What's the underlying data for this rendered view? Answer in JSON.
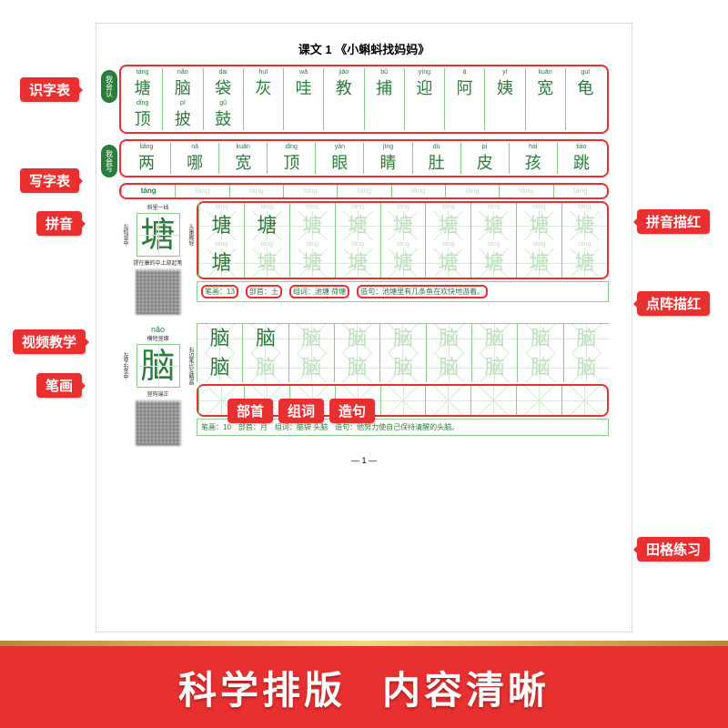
{
  "title": "课文 1 《小蝌蚪找妈妈》",
  "page_number": "— 1 —",
  "badges": {
    "recognize": "我会认",
    "write": "我会写"
  },
  "recognize": {
    "row1_pinyin": [
      "táng",
      "nǎo",
      "dài",
      "huī",
      "wā",
      "jiāo",
      "bǔ",
      "yíng",
      "ā",
      "yí",
      "kuān",
      "guī"
    ],
    "row1_chars": [
      "塘",
      "脑",
      "袋",
      "灰",
      "哇",
      "教",
      "捕",
      "迎",
      "阿",
      "姨",
      "宽",
      "龟"
    ],
    "row2_pinyin": [
      "dǐng",
      "pī",
      "gǔ",
      "",
      "",
      "",
      "",
      "",
      "",
      "",
      "",
      ""
    ],
    "row2_chars": [
      "顶",
      "披",
      "鼓",
      "",
      "",
      "",
      "",
      "",
      "",
      "",
      "",
      ""
    ]
  },
  "write": {
    "pinyin": [
      "liǎng",
      "nǎ",
      "kuān",
      "dǐng",
      "yǎn",
      "jīng",
      "dù",
      "pí",
      "hái",
      "tiào"
    ],
    "chars": [
      "两",
      "哪",
      "宽",
      "顶",
      "眼",
      "睛",
      "肚",
      "皮",
      "孩",
      "跳"
    ]
  },
  "pinyin_bar": {
    "main": "táng",
    "repeats": [
      "táng",
      "táng",
      "táng",
      "táng",
      "táng",
      "táng",
      "táng",
      "táng"
    ]
  },
  "char1": {
    "pinyin": "táng",
    "char": "塘",
    "notes_top": "斜里一线",
    "notes_right": "头重脚轻",
    "notes_bottom": "提在康的中上部起笔",
    "side_note": "左短竖中",
    "strokes": "笔画：13",
    "radical": "部首：土",
    "words": "组词：池塘 荷塘",
    "sentence": "造句：池塘里有几条鱼在欢快地游着。"
  },
  "char2": {
    "pinyin": "nǎo",
    "char": "脑",
    "notes_top": "横短竖细",
    "notes_bottom": "竖钩端正",
    "side_note": "左窄右宽中",
    "notes_right": "右边笔比左略高",
    "strokes": "笔画：10",
    "radical": "部首：月",
    "words": "组词：脑袋 头脑",
    "sentence": "造句：他努力使自己保持清醒的头脑。"
  },
  "labels": {
    "shizi": "识字表",
    "xiezi": "写字表",
    "pinyin": "拼音",
    "shipin": "视频教学",
    "bihua": "笔画",
    "pinyin_miaohong": "拼音描红",
    "dianzhen": "点阵描红",
    "tiange": "田格练习",
    "bushou": "部首",
    "zuci": "组词",
    "zaoju": "造句"
  },
  "banner": {
    "left": "科学排版",
    "right": "内容清晰"
  },
  "colors": {
    "red": "#e93030",
    "green": "#2a7d3a",
    "light_green": "#8fc98f",
    "faded_green": "#bfdfbf"
  }
}
